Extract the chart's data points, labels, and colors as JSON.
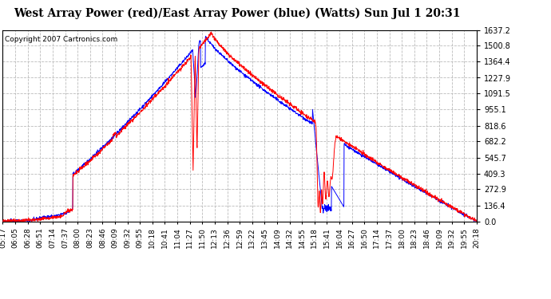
{
  "title": "West Array Power (red)/East Array Power (blue) (Watts) Sun Jul 1 20:31",
  "copyright": "Copyright 2007 Cartronics.com",
  "y_max": 1637.2,
  "y_min": 0.0,
  "y_ticks": [
    0.0,
    136.4,
    272.9,
    409.3,
    545.7,
    682.2,
    818.6,
    955.1,
    1091.5,
    1227.9,
    1364.4,
    1500.8,
    1637.2
  ],
  "x_labels": [
    "05:17",
    "06:05",
    "06:28",
    "06:51",
    "07:14",
    "07:37",
    "08:00",
    "08:23",
    "08:46",
    "09:09",
    "09:32",
    "09:55",
    "10:18",
    "10:41",
    "11:04",
    "11:27",
    "11:50",
    "12:13",
    "12:36",
    "12:59",
    "13:22",
    "13:45",
    "14:09",
    "14:32",
    "14:55",
    "15:18",
    "15:41",
    "16:04",
    "16:27",
    "16:50",
    "17:14",
    "17:37",
    "18:00",
    "18:23",
    "18:46",
    "19:09",
    "19:32",
    "19:55",
    "20:18"
  ],
  "background_color": "#ffffff",
  "grid_color": "#bbbbbb",
  "grid_style": "--",
  "red_color": "#ff0000",
  "blue_color": "#0000ff",
  "title_fontsize": 10,
  "copyright_fontsize": 6.5
}
